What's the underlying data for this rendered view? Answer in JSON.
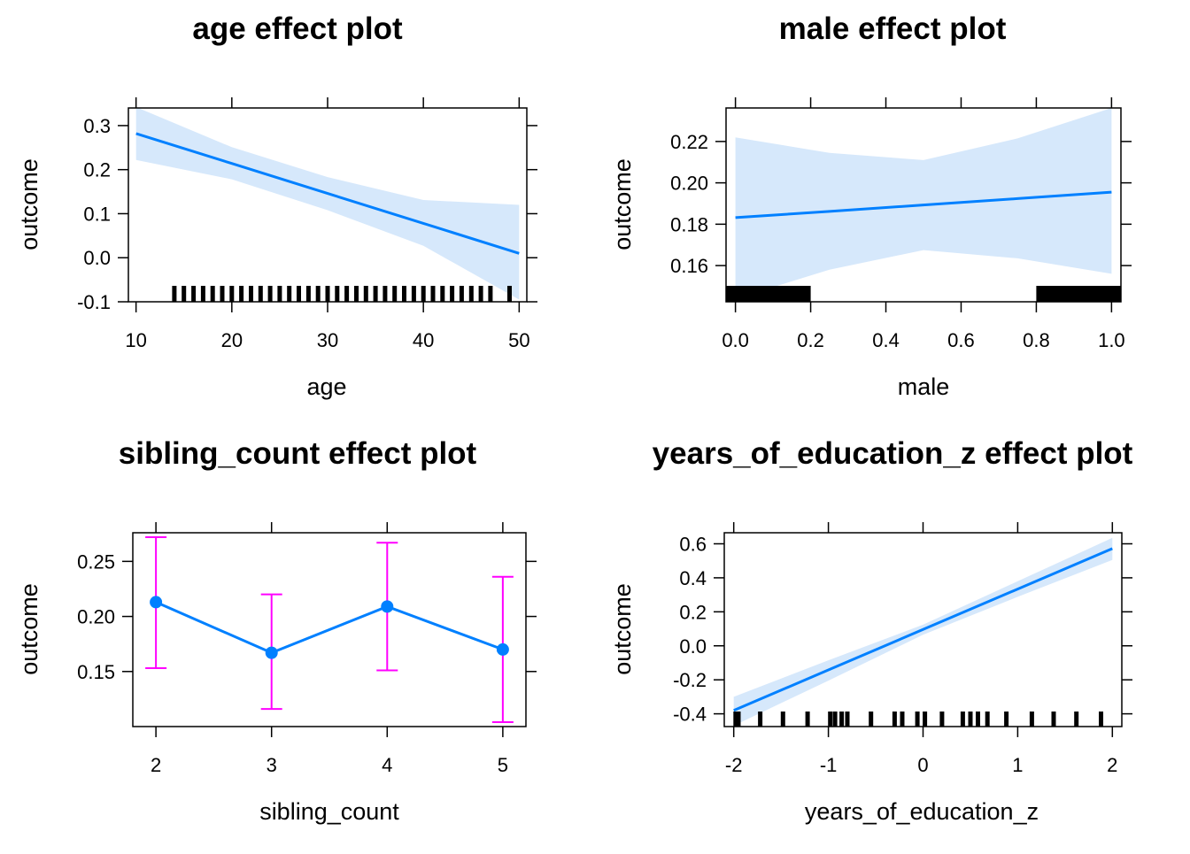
{
  "page": {
    "background": "#ffffff"
  },
  "colors": {
    "line": "#0080ff",
    "band": "#d6e8fb",
    "errorbar": "#ff00ff",
    "rug": "#000000"
  },
  "chart_data": [
    {
      "type": "line",
      "title": "age effect plot",
      "xlabel": "age",
      "ylabel": "outcome",
      "xlim": [
        9.2,
        50.8
      ],
      "ylim": [
        -0.1,
        0.34
      ],
      "xticks": [
        10,
        20,
        30,
        40,
        50
      ],
      "yticks": [
        -0.1,
        0.0,
        0.1,
        0.2,
        0.3
      ],
      "ytick_labels": [
        "-0.1",
        "0.0",
        "0.1",
        "0.2",
        "0.3"
      ],
      "series": [
        {
          "x": [
            10,
            20,
            30,
            40,
            50
          ],
          "y": [
            0.282,
            0.214,
            0.146,
            0.078,
            0.01
          ],
          "lower": [
            0.222,
            0.178,
            0.108,
            0.027,
            -0.095
          ],
          "upper": [
            0.342,
            0.251,
            0.183,
            0.131,
            0.12
          ]
        }
      ],
      "rug": [
        14,
        15,
        16,
        17,
        18,
        19,
        20,
        21,
        22,
        23,
        24,
        25,
        26,
        27,
        28,
        29,
        30,
        31,
        32,
        33,
        34,
        35,
        36,
        37,
        38,
        39,
        40,
        41,
        42,
        43,
        44,
        45,
        46,
        47,
        49
      ]
    },
    {
      "type": "line",
      "title": "male effect plot",
      "xlabel": "male",
      "ylabel": "outcome",
      "xlim": [
        -0.025,
        1.025
      ],
      "ylim": [
        0.1425,
        0.2362
      ],
      "xticks": [
        0.0,
        0.2,
        0.4,
        0.6,
        0.8,
        1.0
      ],
      "xtick_labels": [
        "0.0",
        "0.2",
        "0.4",
        "0.6",
        "0.8",
        "1.0"
      ],
      "yticks": [
        0.16,
        0.18,
        0.2,
        0.22
      ],
      "ytick_labels": [
        "0.16",
        "0.18",
        "0.20",
        "0.22"
      ],
      "series": [
        {
          "x": [
            0,
            0.25,
            0.5,
            0.75,
            1.0
          ],
          "y": [
            0.1832,
            0.1862,
            0.1893,
            0.1924,
            0.1955
          ],
          "lower": [
            0.144,
            0.158,
            0.1675,
            0.1635,
            0.156
          ],
          "upper": [
            0.222,
            0.2145,
            0.211,
            0.2215,
            0.2362
          ]
        }
      ],
      "rug_blocks": [
        [
          -0.025,
          0.2
        ],
        [
          0.8,
          1.025
        ]
      ]
    },
    {
      "type": "line",
      "title": "sibling_count effect plot",
      "xlabel": "sibling_count",
      "ylabel": "outcome",
      "xlim": [
        1.8,
        5.2
      ],
      "ylim": [
        0.1,
        0.276
      ],
      "xticks": [
        2,
        3,
        4,
        5
      ],
      "yticks": [
        0.15,
        0.2,
        0.25
      ],
      "ytick_labels": [
        "0.15",
        "0.20",
        "0.25"
      ],
      "series": [
        {
          "x": [
            2,
            3,
            4,
            5
          ],
          "y": [
            0.213,
            0.167,
            0.209,
            0.17
          ],
          "lower": [
            0.153,
            0.116,
            0.151,
            0.104
          ],
          "upper": [
            0.272,
            0.22,
            0.267,
            0.236
          ]
        }
      ]
    },
    {
      "type": "line",
      "title": "years_of_education_z effect plot",
      "xlabel": "years_of_education_z",
      "ylabel": "outcome",
      "xlim": [
        -2.1,
        2.1
      ],
      "ylim": [
        -0.475,
        0.665
      ],
      "xticks": [
        -2,
        -1,
        0,
        1,
        2
      ],
      "yticks": [
        -0.4,
        -0.2,
        0.0,
        0.2,
        0.4,
        0.6
      ],
      "ytick_labels": [
        "-0.4",
        "-0.2",
        "0.0",
        "0.2",
        "0.4",
        "0.6"
      ],
      "series": [
        {
          "x": [
            -2,
            -1,
            0,
            1,
            2
          ],
          "y": [
            -0.38,
            -0.142,
            0.096,
            0.334,
            0.572
          ],
          "lower": [
            -0.47,
            -0.205,
            0.065,
            0.288,
            0.505
          ],
          "upper": [
            -0.3,
            -0.085,
            0.124,
            0.38,
            0.635
          ]
        }
      ],
      "rug": [
        -1.98,
        -1.95,
        -1.72,
        -1.48,
        -1.22,
        -0.98,
        -0.93,
        -0.86,
        -0.8,
        -0.55,
        -0.3,
        -0.22,
        -0.06,
        0.02,
        0.2,
        0.42,
        0.5,
        0.58,
        0.68,
        0.88,
        1.15,
        1.38,
        1.62,
        1.88
      ]
    }
  ]
}
